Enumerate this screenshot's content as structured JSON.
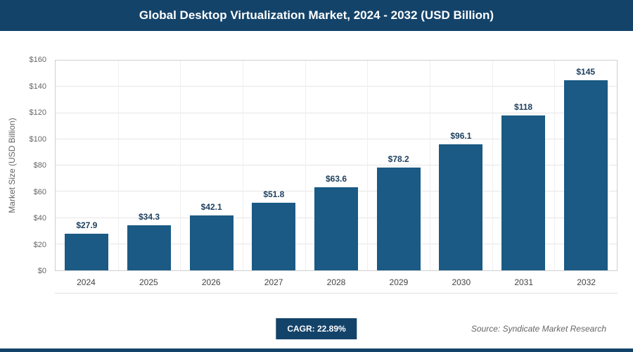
{
  "header": {
    "title": "Global Desktop Virtualization Market, 2024 - 2032 (USD Billion)"
  },
  "chart_data": {
    "type": "bar",
    "title": "Global Desktop Virtualization Market, 2024 - 2032 (USD Billion)",
    "categories": [
      "2024",
      "2025",
      "2026",
      "2027",
      "2028",
      "2029",
      "2030",
      "2031",
      "2032"
    ],
    "values": [
      27.9,
      34.3,
      42.1,
      51.8,
      63.6,
      78.2,
      96.1,
      118,
      145
    ],
    "value_labels": [
      "$27.9",
      "$34.3",
      "$42.1",
      "$51.8",
      "$63.6",
      "$78.2",
      "$96.1",
      "$118",
      "$145"
    ],
    "xlabel": "",
    "ylabel": "Market Size (USD Billion)",
    "ylim": [
      0,
      160
    ],
    "ytick_step": 20,
    "ytick_labels": [
      "$0",
      "$20",
      "$40",
      "$60",
      "$80",
      "$100",
      "$120",
      "$140",
      "$160"
    ],
    "grid": true,
    "legend": "none",
    "bar_color": "#1a5a84"
  },
  "footer": {
    "cagr_label": "CAGR: 22.89%",
    "source": "Source: Syndicate Market Research"
  },
  "colors": {
    "navy": "#14436a",
    "bar": "#1a5a84",
    "grid": "#e6e6e6",
    "label_text": "#1c3e5e"
  }
}
